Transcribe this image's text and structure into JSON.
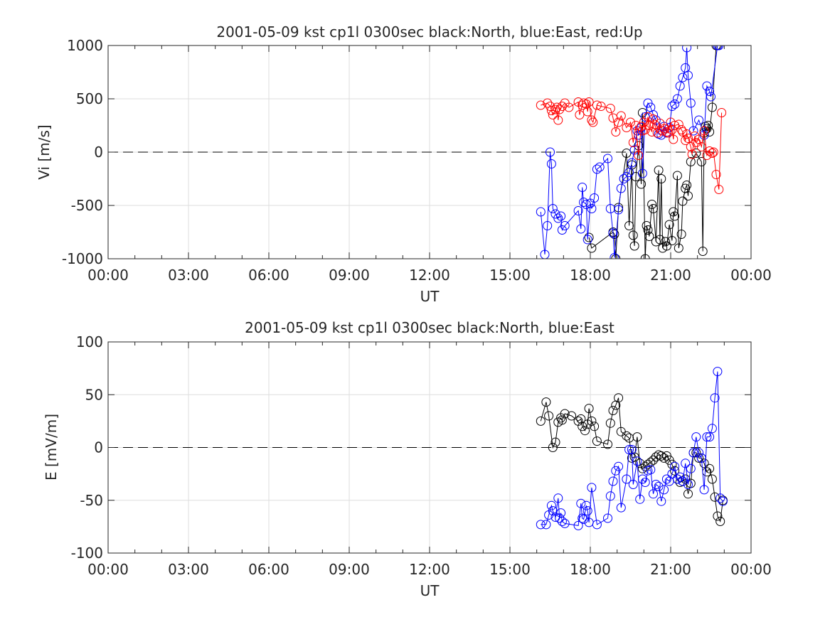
{
  "chart_data": [
    {
      "type": "line",
      "title": "2001-05-09 kst cp1l 0300sec black:North, blue:East, red:Up",
      "xlabel": "UT",
      "ylabel": "Vi [m/s]",
      "xlim_hours": [
        0,
        24
      ],
      "ylim": [
        -1000,
        1000
      ],
      "xtick_labels": [
        "00:00",
        "03:00",
        "06:00",
        "09:00",
        "12:00",
        "15:00",
        "18:00",
        "21:00",
        "00:00"
      ],
      "ytick_values": [
        -1000,
        -500,
        0,
        500,
        1000
      ],
      "ytick_labels": [
        "-1000",
        "-500",
        "0",
        "500",
        "1000"
      ],
      "grid": true,
      "zero_line": "dashed",
      "marker": "circle",
      "series": [
        {
          "color": "#000000",
          "x": [
            17.95,
            18.05,
            18.85,
            18.9,
            18.95,
            19.05,
            19.35,
            19.45,
            19.55,
            19.6,
            19.65,
            19.7,
            19.8,
            19.9,
            19.95,
            20.05,
            20.1,
            20.15,
            20.2,
            20.3,
            20.35,
            20.45,
            20.55,
            20.6,
            20.65,
            20.7,
            20.8,
            20.85,
            20.95,
            21.05,
            21.1,
            21.15,
            21.25,
            21.3,
            21.4,
            21.45,
            21.55,
            21.6,
            21.65,
            21.75,
            21.95,
            22.15,
            22.2,
            22.25,
            22.3,
            22.35,
            22.4,
            22.45,
            22.55,
            22.7,
            22.75
          ],
          "y": [
            -800,
            -900,
            -750,
            -770,
            -1000,
            -520,
            -10,
            -690,
            -120,
            -780,
            -880,
            -230,
            60,
            -300,
            370,
            -1000,
            -690,
            -730,
            -790,
            -490,
            -530,
            -840,
            -170,
            -820,
            -250,
            -900,
            -840,
            -880,
            -680,
            -830,
            -560,
            -600,
            -220,
            -900,
            -770,
            -460,
            -340,
            -310,
            -410,
            -90,
            -10,
            -90,
            -930,
            180,
            240,
            220,
            250,
            190,
            420,
            1000,
            1000
          ]
        },
        {
          "color": "#0000ff",
          "x": [
            16.15,
            16.3,
            16.4,
            16.5,
            16.55,
            16.6,
            16.7,
            16.8,
            16.9,
            16.95,
            17.05,
            17.55,
            17.65,
            17.7,
            17.75,
            17.85,
            17.9,
            18.0,
            18.05,
            18.15,
            18.25,
            18.35,
            18.65,
            18.75,
            18.85,
            18.9,
            19.05,
            19.15,
            19.25,
            19.35,
            19.45,
            19.55,
            19.65,
            19.75,
            19.8,
            19.9,
            19.95,
            20.05,
            20.15,
            20.25,
            20.35,
            20.45,
            20.55,
            20.65,
            20.75,
            20.85,
            20.95,
            21.05,
            21.15,
            21.25,
            21.35,
            21.45,
            21.55,
            21.6,
            21.65,
            21.75,
            21.85,
            22.05,
            22.25,
            22.35,
            22.45,
            22.5,
            22.75,
            22.8
          ],
          "y": [
            -560,
            -960,
            -690,
            0,
            -110,
            -530,
            -580,
            -620,
            -600,
            -730,
            -690,
            -550,
            -720,
            -330,
            -470,
            -490,
            -820,
            -480,
            -530,
            -430,
            -160,
            -140,
            -60,
            -530,
            -760,
            -990,
            -540,
            -340,
            -250,
            -230,
            -190,
            -100,
            20,
            200,
            160,
            230,
            -200,
            330,
            460,
            420,
            350,
            300,
            170,
            160,
            240,
            180,
            230,
            430,
            450,
            500,
            620,
            700,
            790,
            980,
            720,
            460,
            200,
            300,
            160,
            620,
            570,
            520,
            1000,
            1000
          ]
        },
        {
          "color": "#ff0000",
          "x": [
            16.15,
            16.4,
            16.5,
            16.55,
            16.6,
            16.7,
            16.75,
            16.8,
            16.85,
            16.95,
            17.05,
            17.2,
            17.55,
            17.6,
            17.7,
            17.75,
            17.85,
            17.9,
            17.95,
            18.05,
            18.1,
            18.25,
            18.4,
            18.75,
            18.85,
            18.95,
            19.05,
            19.15,
            19.35,
            19.5,
            19.6,
            19.7,
            19.8,
            19.9,
            19.95,
            20.0,
            20.05,
            20.15,
            20.2,
            20.3,
            20.35,
            20.4,
            20.5,
            20.6,
            20.7,
            20.75,
            20.85,
            20.9,
            21.0,
            21.05,
            21.1,
            21.15,
            21.3,
            21.4,
            21.45,
            21.55,
            21.6,
            21.65,
            21.75,
            21.8,
            21.9,
            21.95,
            22.05,
            22.15,
            22.25,
            22.35,
            22.45,
            22.55,
            22.6,
            22.7,
            22.8,
            22.9
          ],
          "y": [
            440,
            460,
            430,
            390,
            350,
            400,
            420,
            300,
            400,
            430,
            460,
            420,
            470,
            350,
            440,
            460,
            450,
            380,
            470,
            300,
            280,
            440,
            430,
            410,
            320,
            190,
            280,
            340,
            230,
            280,
            90,
            250,
            -30,
            240,
            200,
            280,
            210,
            330,
            250,
            190,
            310,
            260,
            180,
            270,
            200,
            220,
            190,
            180,
            280,
            210,
            120,
            250,
            260,
            210,
            190,
            110,
            170,
            130,
            50,
            -20,
            150,
            90,
            120,
            50,
            200,
            -30,
            10,
            -10,
            0,
            -210,
            -350,
            370
          ]
        }
      ]
    },
    {
      "type": "line",
      "title": "2001-05-09 kst cp1l 0300sec black:North, blue:East",
      "xlabel": "UT",
      "ylabel": "E [mV/m]",
      "xlim_hours": [
        0,
        24
      ],
      "ylim": [
        -100,
        100
      ],
      "xtick_labels": [
        "00:00",
        "03:00",
        "06:00",
        "09:00",
        "12:00",
        "15:00",
        "18:00",
        "21:00",
        "00:00"
      ],
      "ytick_values": [
        -100,
        -50,
        0,
        50,
        100
      ],
      "ytick_labels": [
        "-100",
        "-50",
        "0",
        "50",
        "100"
      ],
      "grid": true,
      "zero_line": "dashed",
      "marker": "circle",
      "series": [
        {
          "color": "#000000",
          "x": [
            16.15,
            16.35,
            16.45,
            16.6,
            16.7,
            16.8,
            16.9,
            16.95,
            17.05,
            17.3,
            17.55,
            17.65,
            17.7,
            17.8,
            17.9,
            17.95,
            18.05,
            18.15,
            18.25,
            18.65,
            18.75,
            18.85,
            18.95,
            19.05,
            19.15,
            19.35,
            19.45,
            19.55,
            19.65,
            19.75,
            19.85,
            19.95,
            20.05,
            20.15,
            20.25,
            20.35,
            20.45,
            20.55,
            20.65,
            20.75,
            20.85,
            20.95,
            21.05,
            21.15,
            21.25,
            21.35,
            21.45,
            21.55,
            21.65,
            21.75,
            21.85,
            21.95,
            22.05,
            22.15,
            22.25,
            22.35,
            22.45,
            22.55,
            22.65,
            22.75,
            22.85,
            22.95
          ],
          "y": [
            25,
            43,
            30,
            0,
            5,
            24,
            28,
            26,
            32,
            30,
            25,
            27,
            20,
            16,
            22,
            37,
            25,
            20,
            6,
            3,
            23,
            35,
            40,
            47,
            15,
            11,
            9,
            -10,
            -9,
            10,
            -15,
            -20,
            -18,
            -16,
            -14,
            -12,
            -9,
            -7,
            -8,
            -10,
            -8,
            -12,
            -16,
            -22,
            -30,
            -33,
            -32,
            -30,
            -44,
            -34,
            -5,
            -5,
            -10,
            -10,
            -15,
            -23,
            -20,
            -30,
            -47,
            -65,
            -70,
            -50
          ]
        },
        {
          "color": "#0000ff",
          "x": [
            16.15,
            16.35,
            16.45,
            16.55,
            16.6,
            16.7,
            16.8,
            16.85,
            16.9,
            16.95,
            17.05,
            17.55,
            17.65,
            17.7,
            17.75,
            17.85,
            17.9,
            17.95,
            18.05,
            18.25,
            18.65,
            18.75,
            18.85,
            18.95,
            19.05,
            19.15,
            19.35,
            19.45,
            19.55,
            19.6,
            19.75,
            19.85,
            19.95,
            20.05,
            20.15,
            20.25,
            20.35,
            20.45,
            20.55,
            20.65,
            20.75,
            20.85,
            20.95,
            21.05,
            21.15,
            21.25,
            21.35,
            21.45,
            21.55,
            21.65,
            21.75,
            21.85,
            21.95,
            22.05,
            22.15,
            22.25,
            22.35,
            22.45,
            22.55,
            22.65,
            22.75,
            22.85,
            22.95
          ],
          "y": [
            -73,
            -73,
            -64,
            -55,
            -60,
            -66,
            -48,
            -67,
            -62,
            -70,
            -72,
            -74,
            -53,
            -67,
            -68,
            -55,
            -60,
            -71,
            -38,
            -73,
            -67,
            -46,
            -32,
            -22,
            -18,
            -57,
            -30,
            -2,
            -2,
            -35,
            -13,
            -49,
            -30,
            -33,
            -22,
            -21,
            -44,
            -35,
            -37,
            -51,
            -40,
            -30,
            -32,
            -25,
            -18,
            -30,
            -28,
            -32,
            -15,
            -35,
            -20,
            -5,
            10,
            -5,
            -10,
            -40,
            10,
            10,
            18,
            47,
            72,
            -48,
            -51
          ]
        }
      ]
    }
  ]
}
